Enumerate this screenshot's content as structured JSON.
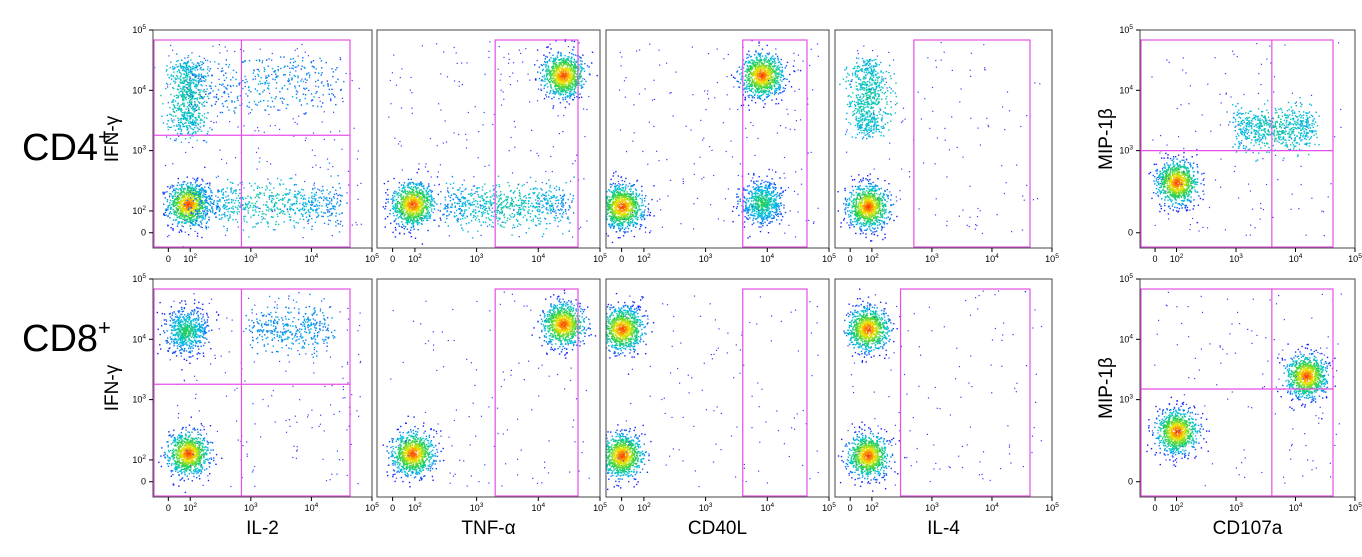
{
  "figure": {
    "rows": [
      {
        "label": "CD4",
        "superscript": "+"
      },
      {
        "label": "CD8",
        "superscript": "+"
      }
    ],
    "panel_ylabels": [
      "IFN-γ",
      "IFN-γ",
      "IFN-γ",
      "IFN-γ",
      "MIP-1β"
    ],
    "tick_labels": {
      "x_main": [
        {
          "base": "0"
        },
        {
          "base": "10",
          "exp": "2"
        },
        {
          "base": "10",
          "exp": "3"
        },
        {
          "base": "10",
          "exp": "4"
        },
        {
          "base": "10",
          "exp": "5"
        }
      ],
      "y_main": [
        {
          "base": "0"
        },
        {
          "base": "10",
          "exp": "2"
        },
        {
          "base": "10",
          "exp": "3"
        },
        {
          "base": "10",
          "exp": "4"
        },
        {
          "base": "10",
          "exp": "5"
        }
      ],
      "y_mip": [
        {
          "base": "0"
        },
        {
          "base": "10",
          "exp": "3"
        },
        {
          "base": "10",
          "exp": "4"
        },
        {
          "base": "10",
          "exp": "5"
        }
      ]
    },
    "colors": {
      "gate": "#e64fe6",
      "density_low": "#1a1aff",
      "density_mid": "#00c8c8",
      "density_high": "#ff2a00"
    }
  },
  "chart_data": [
    {
      "type": "scatter",
      "row": "CD4+",
      "xlabel": "IL-2",
      "ylabel": "IFN-γ",
      "xlim": [
        "0",
        "10^5"
      ],
      "ylim": [
        "0",
        "10^5"
      ],
      "x_scale": "biexponential",
      "y_scale": "biexponential",
      "populations": [
        {
          "x": 60,
          "y": 130,
          "density": "high"
        },
        {
          "x": "100-30000",
          "y": 130,
          "density": "medium"
        },
        {
          "x": 60,
          "y": "2000-30000",
          "density": "medium"
        },
        {
          "x": "100-30000",
          "y": "5000-30000",
          "density": "low"
        }
      ],
      "gate": {
        "type": "quadrant",
        "x_threshold": 700,
        "y_threshold": 1800
      }
    },
    {
      "type": "scatter",
      "row": "CD4+",
      "xlabel": "TNF-α",
      "ylabel": "IFN-γ",
      "xlim": [
        "0",
        "10^5"
      ],
      "ylim": [
        "0",
        "10^5"
      ],
      "x_scale": "biexponential",
      "y_scale": "biexponential",
      "populations": [
        {
          "x": 60,
          "y": 130,
          "density": "high"
        },
        {
          "x": "300-30000",
          "y": 130,
          "density": "medium"
        },
        {
          "x": 25000,
          "y": 18000,
          "density": "high"
        }
      ],
      "gate": {
        "type": "rectangle",
        "x_min": 2000,
        "x_max": 100000,
        "y_min": 0,
        "y_max": 100000
      }
    },
    {
      "type": "scatter",
      "row": "CD4+",
      "xlabel": "CD40L",
      "ylabel": "IFN-γ",
      "xlim": [
        "0",
        "10^5"
      ],
      "ylim": [
        "0",
        "10^5"
      ],
      "x_scale": "biexponential",
      "y_scale": "biexponential",
      "populations": [
        {
          "x": 0,
          "y": 120,
          "density": "high"
        },
        {
          "x": 8000,
          "y": 140,
          "density": "medium"
        },
        {
          "x": 8000,
          "y": 18000,
          "density": "high"
        }
      ],
      "gate": {
        "type": "rectangle",
        "x_min": 4000,
        "x_max": 100000,
        "y_min": 0,
        "y_max": 100000
      }
    },
    {
      "type": "scatter",
      "row": "CD4+",
      "xlabel": "IL-4",
      "ylabel": "IFN-γ",
      "xlim": [
        "0",
        "10^5"
      ],
      "ylim": [
        "0",
        "10^5"
      ],
      "x_scale": "biexponential",
      "y_scale": "biexponential",
      "populations": [
        {
          "x": 40,
          "y": 120,
          "density": "high"
        },
        {
          "x": 40,
          "y": "2000-30000",
          "density": "medium"
        }
      ],
      "gate": {
        "type": "rectangle",
        "x_min": 500,
        "x_max": 100000,
        "y_min": 0,
        "y_max": 100000
      }
    },
    {
      "type": "scatter",
      "row": "CD4+",
      "xlabel": "CD107a",
      "ylabel": "MIP-1β",
      "xlim": [
        "0",
        "10^5"
      ],
      "ylim": [
        "0",
        "10^5"
      ],
      "x_scale": "biexponential",
      "y_scale": "biexponential",
      "populations": [
        {
          "x": 100,
          "y": 300,
          "density": "high"
        },
        {
          "x": "1000-20000",
          "y": 2500,
          "density": "medium"
        }
      ],
      "gate": {
        "type": "quadrant",
        "x_threshold": 4000,
        "y_threshold": 1000
      }
    },
    {
      "type": "scatter",
      "row": "CD8+",
      "xlabel": "IL-2",
      "ylabel": "IFN-γ",
      "xlim": [
        "0",
        "10^5"
      ],
      "ylim": [
        "0",
        "10^5"
      ],
      "x_scale": "biexponential",
      "y_scale": "biexponential",
      "populations": [
        {
          "x": 60,
          "y": 130,
          "density": "high"
        },
        {
          "x": 40,
          "y": 14000,
          "density": "medium"
        },
        {
          "x": "1000-20000",
          "y": 15000,
          "density": "low"
        }
      ],
      "gate": {
        "type": "quadrant",
        "x_threshold": 700,
        "y_threshold": 1800
      }
    },
    {
      "type": "scatter",
      "row": "CD8+",
      "xlabel": "TNF-α",
      "ylabel": "IFN-γ",
      "xlim": [
        "0",
        "10^5"
      ],
      "ylim": [
        "0",
        "10^5"
      ],
      "x_scale": "biexponential",
      "y_scale": "biexponential",
      "populations": [
        {
          "x": 60,
          "y": 130,
          "density": "high"
        },
        {
          "x": 25000,
          "y": 18000,
          "density": "high"
        }
      ],
      "gate": {
        "type": "rectangle",
        "x_min": 2000,
        "x_max": 100000,
        "y_min": 0,
        "y_max": 100000
      }
    },
    {
      "type": "scatter",
      "row": "CD8+",
      "xlabel": "CD40L",
      "ylabel": "IFN-γ",
      "xlim": [
        "0",
        "10^5"
      ],
      "ylim": [
        "0",
        "10^5"
      ],
      "x_scale": "biexponential",
      "y_scale": "biexponential",
      "populations": [
        {
          "x": 0,
          "y": 120,
          "density": "high"
        },
        {
          "x": 0,
          "y": 15000,
          "density": "high"
        }
      ],
      "gate": {
        "type": "rectangle",
        "x_min": 4000,
        "x_max": 100000,
        "y_min": 0,
        "y_max": 100000
      }
    },
    {
      "type": "scatter",
      "row": "CD8+",
      "xlabel": "IL-4",
      "ylabel": "IFN-γ",
      "xlim": [
        "0",
        "10^5"
      ],
      "ylim": [
        "0",
        "10^5"
      ],
      "x_scale": "biexponential",
      "y_scale": "biexponential",
      "populations": [
        {
          "x": 40,
          "y": 120,
          "density": "high"
        },
        {
          "x": 40,
          "y": 15000,
          "density": "high"
        }
      ],
      "gate": {
        "type": "rectangle",
        "x_min": 300,
        "x_max": 100000,
        "y_min": 0,
        "y_max": 100000
      }
    },
    {
      "type": "scatter",
      "row": "CD8+",
      "xlabel": "CD107a",
      "ylabel": "MIP-1β",
      "xlim": [
        "0",
        "10^5"
      ],
      "ylim": [
        "0",
        "10^5"
      ],
      "x_scale": "biexponential",
      "y_scale": "biexponential",
      "populations": [
        {
          "x": 100,
          "y": 300,
          "density": "high"
        },
        {
          "x": 15000,
          "y": 2500,
          "density": "high"
        }
      ],
      "gate": {
        "type": "quadrant",
        "x_threshold": 4000,
        "y_threshold": 1500
      }
    }
  ]
}
